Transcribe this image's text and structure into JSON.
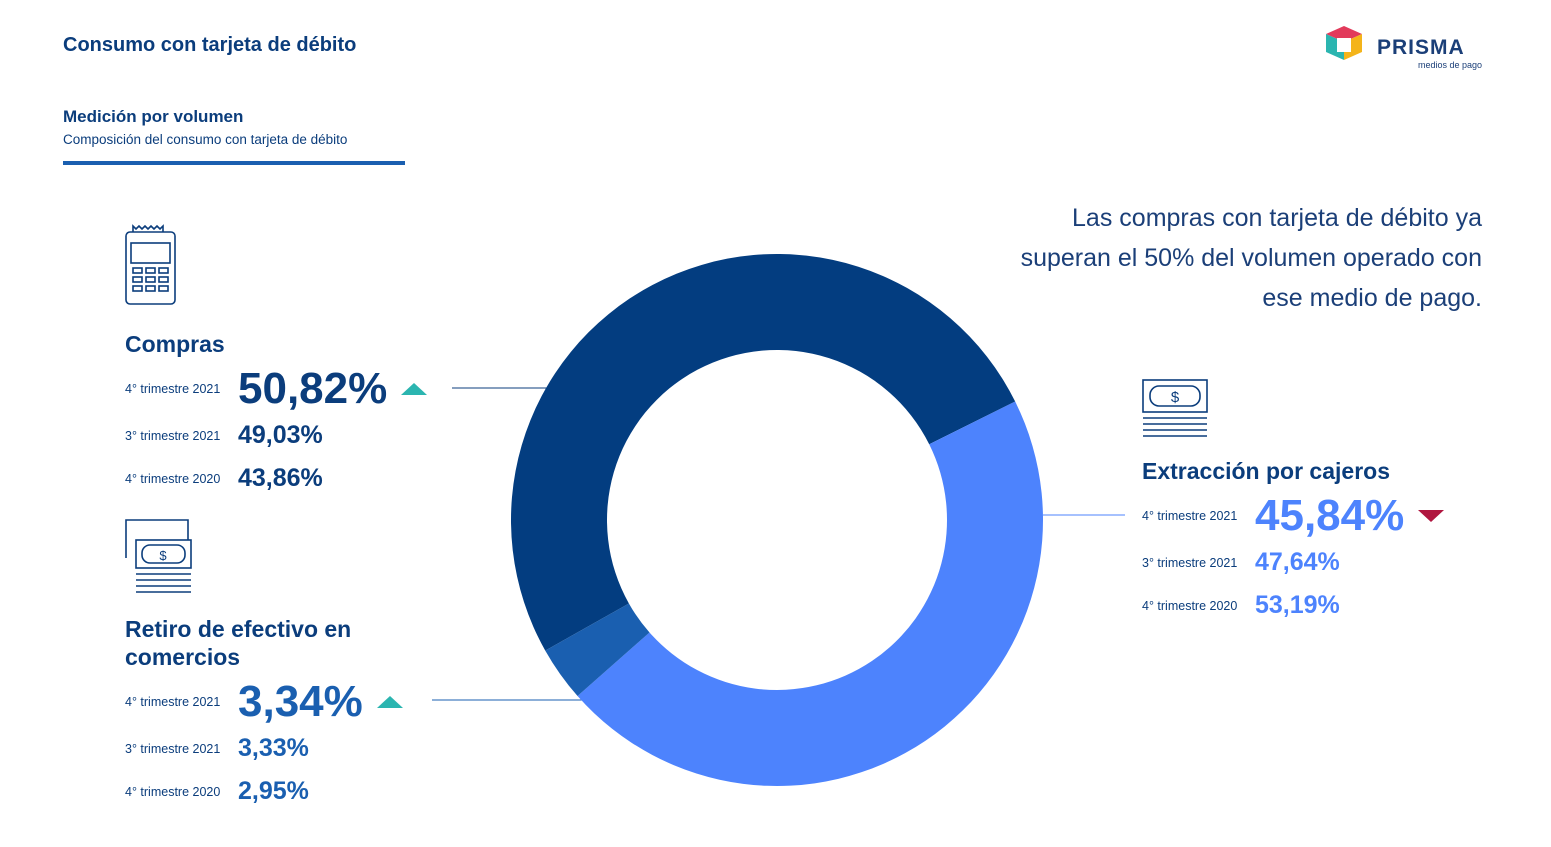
{
  "header": {
    "title": "Consumo con tarjeta de débito",
    "heading": "Medición por volumen",
    "subheading": "Composición del consumo con tarjeta de débito"
  },
  "logo": {
    "name": "PRISMA",
    "tagline": "medios de pago"
  },
  "chart_data": {
    "type": "donut",
    "note": "Las compras con tarjeta de débito ya superan el 50% del volumen operado con ese medio de pago.",
    "categories": [
      "Compras",
      "Extracción por cajeros",
      "Retiro de efectivo en comercios"
    ],
    "colors": [
      "#033d80",
      "#4d83fd",
      "#1a5fb0"
    ],
    "trends": [
      "up",
      "down",
      "up"
    ],
    "series": [
      {
        "name": "4° trimestre 2021",
        "values": [
          50.82,
          45.84,
          3.34
        ],
        "value_labels": [
          "50,82%",
          "45,84%",
          "3,34%"
        ]
      },
      {
        "name": "3° trimestre 2021",
        "values": [
          49.03,
          47.64,
          3.33
        ],
        "value_labels": [
          "49,03%",
          "47,64%",
          "3,33%"
        ]
      },
      {
        "name": "4° trimestre 2020",
        "values": [
          43.86,
          53.19,
          2.95
        ],
        "value_labels": [
          "43,86%",
          "53,19%",
          "2,95%"
        ]
      }
    ]
  }
}
